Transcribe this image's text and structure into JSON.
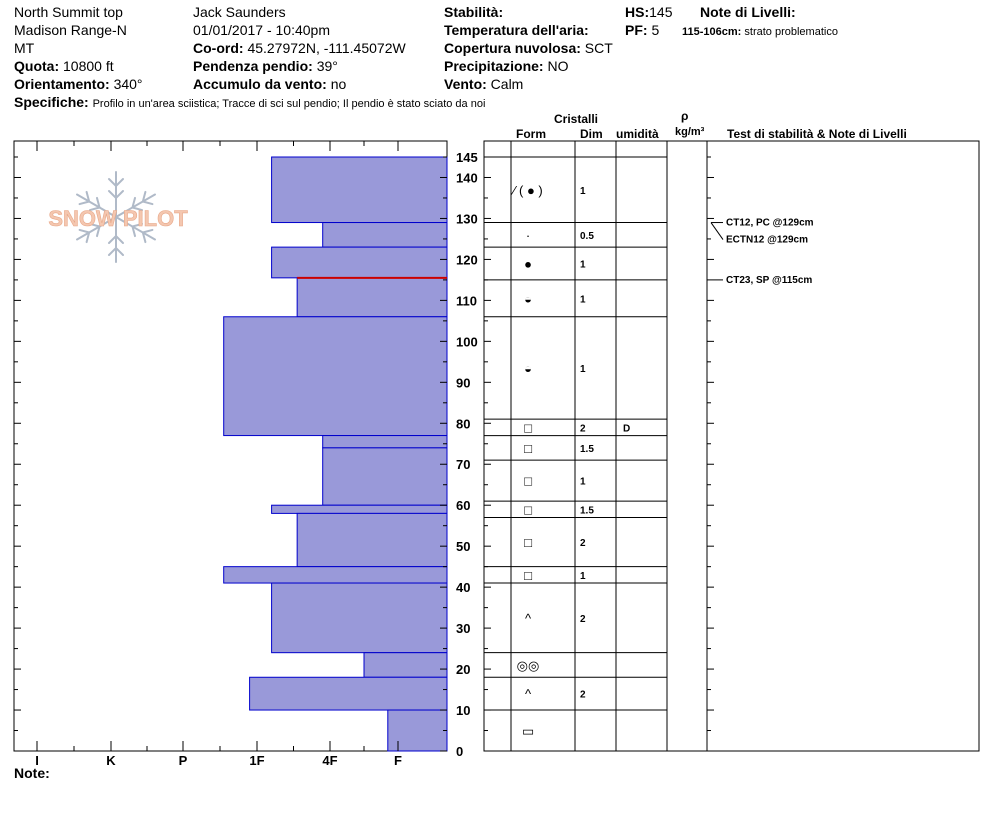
{
  "header": {
    "location": "North Summit top",
    "range": "Madison Range-N",
    "state": "MT",
    "elevation_label": "Quota:",
    "elevation_value": "10800 ft",
    "aspect_label": "Orientamento:",
    "aspect_value": "340°",
    "observer": "Jack Saunders",
    "datetime": "01/01/2017 - 10:40pm",
    "coords_label": "Co-ord:",
    "coords_value": "45.27972N, -111.45072W",
    "slope_label": "Pendenza pendio:",
    "slope_value": "39°",
    "wind_load_label": "Accumulo da vento:",
    "wind_load_value": "no",
    "stability_label": "Stabilità:",
    "air_temp_label": "Temperatura dell'aria:",
    "cloud_label": "Copertura nuvolosa:",
    "cloud_value": "SCT",
    "precip_label": "Precipitazione:",
    "precip_value": "NO",
    "wind_label": "Vento:",
    "wind_value": "Calm",
    "hs_label": "HS:",
    "hs_value": "145",
    "pf_label": "PF:",
    "pf_value": "5",
    "layer_notes_label": "Note di Livelli:",
    "layer_note_range": "115-106cm:",
    "layer_note_text": "strato problematico",
    "specifics_label": "Specifiche:",
    "specifics_text": "Profilo in un'area sciistica; Tracce di sci sul pendio; Il pendio è stato sciato da noi",
    "notes_label": "Note:"
  },
  "logo_text": "SNOW PILOT",
  "columns": {
    "crystals": "Cristalli",
    "form": "Form",
    "size": "Dim",
    "moisture": "umidità",
    "density_symbol": "ρ",
    "density_unit": "kg/m³",
    "tests": "Test di stabilità & Note di Livelli"
  },
  "hand_hardness_labels": [
    "I",
    "K",
    "P",
    "1F",
    "4F",
    "F"
  ],
  "height_ticks": [
    "0",
    "10",
    "20",
    "30",
    "40",
    "50",
    "60",
    "70",
    "80",
    "90",
    "100",
    "110",
    "120",
    "130",
    "140",
    "145"
  ],
  "chart_data": {
    "type": "bar",
    "ylim": [
      0,
      145
    ],
    "x_categories": [
      "I",
      "K",
      "P",
      "1F",
      "4F",
      "F"
    ],
    "layers": [
      {
        "top": 145,
        "bottom": 129,
        "hardness": 3.2
      },
      {
        "top": 129,
        "bottom": 123,
        "hardness": 3.9
      },
      {
        "top": 123,
        "bottom": 115.5,
        "hardness": 3.2
      },
      {
        "top": 115.5,
        "bottom": 106,
        "hardness": 3.55
      },
      {
        "top": 106,
        "bottom": 77,
        "hardness": 2.55
      },
      {
        "top": 77,
        "bottom": 74,
        "hardness": 3.9
      },
      {
        "top": 74,
        "bottom": 60,
        "hardness": 3.9
      },
      {
        "top": 60,
        "bottom": 58,
        "hardness": 3.2
      },
      {
        "top": 58,
        "bottom": 45,
        "hardness": 3.55
      },
      {
        "top": 45,
        "bottom": 41,
        "hardness": 2.55
      },
      {
        "top": 41,
        "bottom": 24,
        "hardness": 3.2
      },
      {
        "top": 24,
        "bottom": 18,
        "hardness": 4.5
      },
      {
        "top": 18,
        "bottom": 10,
        "hardness": 2.9
      },
      {
        "top": 10,
        "bottom": 0,
        "hardness": 4.85
      }
    ],
    "weak_layer_height": 115.5,
    "grain_rows": [
      {
        "top": 145,
        "bottom": 129,
        "form": "⁄ ( ● )",
        "size": "1",
        "moisture": ""
      },
      {
        "top": 129,
        "bottom": 123,
        "form": "·",
        "size": "0.5",
        "moisture": ""
      },
      {
        "top": 123,
        "bottom": 115,
        "form": "●",
        "size": "1",
        "moisture": ""
      },
      {
        "top": 115,
        "bottom": 106,
        "form": "◒",
        "size": "1",
        "moisture": ""
      },
      {
        "top": 106,
        "bottom": 81,
        "form": "◒",
        "size": "1",
        "moisture": ""
      },
      {
        "top": 81,
        "bottom": 77,
        "form": "□",
        "size": "2",
        "moisture": "D"
      },
      {
        "top": 77,
        "bottom": 71,
        "form": "□",
        "size": "1.5",
        "moisture": ""
      },
      {
        "top": 71,
        "bottom": 61,
        "form": "□",
        "size": "1",
        "moisture": ""
      },
      {
        "top": 61,
        "bottom": 57,
        "form": "□",
        "size": "1.5",
        "moisture": ""
      },
      {
        "top": 57,
        "bottom": 45,
        "form": "□",
        "size": "2",
        "moisture": ""
      },
      {
        "top": 45,
        "bottom": 41,
        "form": "□",
        "size": "1",
        "moisture": ""
      },
      {
        "top": 41,
        "bottom": 24,
        "form": "^",
        "size": "2",
        "moisture": ""
      },
      {
        "top": 24,
        "bottom": 18,
        "form": "◎◎",
        "size": "",
        "moisture": ""
      },
      {
        "top": 18,
        "bottom": 10,
        "form": "^",
        "size": "2",
        "moisture": ""
      },
      {
        "top": 10,
        "bottom": 0,
        "form": "▭",
        "size": "",
        "moisture": ""
      }
    ],
    "tests": [
      {
        "label": "CT12, PC @129cm",
        "height": 129
      },
      {
        "label": "ECTN12 @129cm",
        "height": 129
      },
      {
        "label": "CT23, SP @115cm",
        "height": 115
      }
    ]
  },
  "colors": {
    "bar_fill": "#9999d9",
    "bar_stroke": "#0000cc",
    "weak_layer": "#cc0000",
    "logo_text": "#f4c7b0",
    "logo_flake": "#b0bac8"
  }
}
